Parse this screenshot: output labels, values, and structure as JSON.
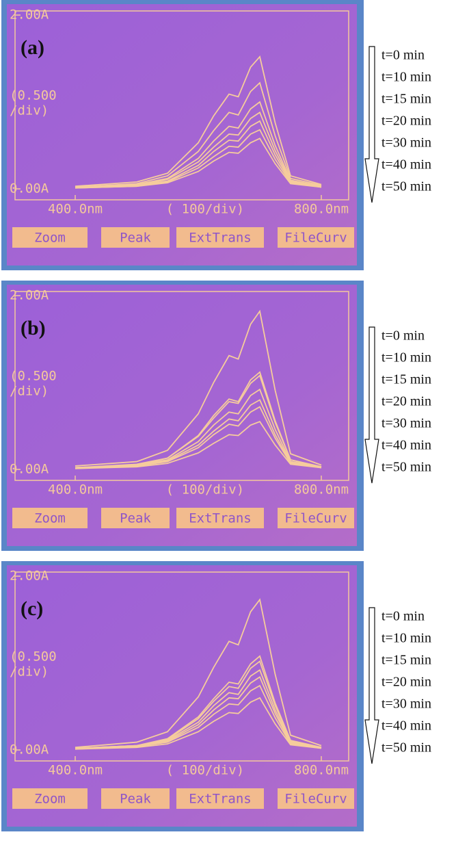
{
  "chart_data": [
    {
      "type": "line",
      "panel_label": "(a)",
      "x": [
        400,
        500,
        550,
        600,
        625,
        650,
        665,
        685,
        700,
        725,
        750,
        800
      ],
      "xlim": [
        400,
        800
      ],
      "ylim": [
        0,
        2
      ],
      "xticks": [
        {
          "value": 400,
          "label": "400.0nm"
        },
        {
          "value": 800,
          "label": "800.0nm"
        }
      ],
      "yticks": [
        {
          "value": 0,
          "label": "0.00A"
        },
        {
          "value": 2,
          "label": "2.00A"
        }
      ],
      "x_div_label": "( 100/div)",
      "y_div_label": [
        "(0.500",
        "/div)"
      ],
      "buttons": [
        "Zoom",
        "Peak",
        "ExtTrans",
        "FileCurv"
      ],
      "series": [
        {
          "name": "t=0 min",
          "color": "#f6cc9c",
          "values": [
            0.03,
            0.08,
            0.18,
            0.53,
            0.84,
            1.09,
            1.06,
            1.4,
            1.52,
            0.76,
            0.15,
            0.05
          ]
        },
        {
          "name": "t=10 min",
          "color": "#f6cc9c",
          "values": [
            0.02,
            0.06,
            0.15,
            0.43,
            0.67,
            0.88,
            0.85,
            1.12,
            1.22,
            0.61,
            0.12,
            0.04
          ]
        },
        {
          "name": "t=15 min",
          "color": "#f6cc9c",
          "values": [
            0.02,
            0.05,
            0.12,
            0.35,
            0.55,
            0.72,
            0.7,
            0.92,
            1.0,
            0.5,
            0.1,
            0.03
          ]
        },
        {
          "name": "t=20 min",
          "color": "#f6cc9c",
          "values": [
            0.02,
            0.04,
            0.11,
            0.31,
            0.48,
            0.63,
            0.62,
            0.81,
            0.88,
            0.44,
            0.09,
            0.03
          ]
        },
        {
          "name": "t=30 min",
          "color": "#f6cc9c",
          "values": [
            0.02,
            0.04,
            0.09,
            0.27,
            0.43,
            0.56,
            0.55,
            0.72,
            0.78,
            0.39,
            0.08,
            0.02
          ]
        },
        {
          "name": "t=40 min",
          "color": "#f6cc9c",
          "values": [
            0.01,
            0.03,
            0.08,
            0.24,
            0.37,
            0.49,
            0.48,
            0.63,
            0.68,
            0.34,
            0.07,
            0.02
          ]
        },
        {
          "name": "t=50 min",
          "color": "#f6cc9c",
          "values": [
            0.01,
            0.03,
            0.07,
            0.2,
            0.32,
            0.42,
            0.41,
            0.53,
            0.58,
            0.29,
            0.06,
            0.02
          ]
        }
      ]
    },
    {
      "type": "line",
      "panel_label": "(b)",
      "x": [
        400,
        500,
        550,
        600,
        625,
        650,
        665,
        685,
        700,
        725,
        750,
        800
      ],
      "xlim": [
        400,
        800
      ],
      "ylim": [
        0,
        2
      ],
      "xticks": [
        {
          "value": 400,
          "label": "400.0nm"
        },
        {
          "value": 800,
          "label": "800.0nm"
        }
      ],
      "yticks": [
        {
          "value": 0,
          "label": "0.00A"
        },
        {
          "value": 2,
          "label": "2.00A"
        }
      ],
      "x_div_label": "( 100/div)",
      "y_div_label": [
        "(0.500",
        "/div)"
      ],
      "buttons": [
        "Zoom",
        "Peak",
        "ExtTrans",
        "FileCurv"
      ],
      "series": [
        {
          "name": "t=0 min",
          "color": "#f6cc9c",
          "values": [
            0.04,
            0.09,
            0.22,
            0.64,
            1.0,
            1.31,
            1.27,
            1.67,
            1.82,
            0.91,
            0.18,
            0.05
          ]
        },
        {
          "name": "t=10 min",
          "color": "#f6cc9c",
          "values": [
            0.02,
            0.06,
            0.13,
            0.39,
            0.62,
            0.81,
            0.78,
            1.03,
            1.12,
            0.56,
            0.11,
            0.03
          ]
        },
        {
          "name": "t=15 min",
          "color": "#f6cc9c",
          "values": [
            0.02,
            0.05,
            0.13,
            0.38,
            0.59,
            0.78,
            0.76,
            0.99,
            1.08,
            0.54,
            0.11,
            0.03
          ]
        },
        {
          "name": "t=20 min",
          "color": "#f6cc9c",
          "values": [
            0.02,
            0.05,
            0.11,
            0.32,
            0.51,
            0.66,
            0.64,
            0.85,
            0.92,
            0.46,
            0.09,
            0.03
          ]
        },
        {
          "name": "t=30 min",
          "color": "#f6cc9c",
          "values": [
            0.02,
            0.04,
            0.1,
            0.28,
            0.44,
            0.58,
            0.56,
            0.74,
            0.8,
            0.4,
            0.08,
            0.02
          ]
        },
        {
          "name": "t=40 min",
          "color": "#f6cc9c",
          "values": [
            0.01,
            0.04,
            0.09,
            0.25,
            0.4,
            0.52,
            0.5,
            0.66,
            0.72,
            0.36,
            0.07,
            0.02
          ]
        },
        {
          "name": "t=50 min",
          "color": "#f6cc9c",
          "values": [
            0.01,
            0.03,
            0.07,
            0.19,
            0.3,
            0.4,
            0.39,
            0.51,
            0.55,
            0.28,
            0.06,
            0.02
          ]
        }
      ]
    },
    {
      "type": "line",
      "panel_label": "(c)",
      "x": [
        400,
        500,
        550,
        600,
        625,
        650,
        665,
        685,
        700,
        725,
        750,
        800
      ],
      "xlim": [
        400,
        800
      ],
      "ylim": [
        0,
        2
      ],
      "xticks": [
        {
          "value": 400,
          "label": "400.0nm"
        },
        {
          "value": 800,
          "label": "800.0nm"
        }
      ],
      "yticks": [
        {
          "value": 0,
          "label": "0.00A"
        },
        {
          "value": 2,
          "label": "2.00A"
        }
      ],
      "x_div_label": "( 100/div)",
      "y_div_label": [
        "(0.500",
        "/div)"
      ],
      "buttons": [
        "Zoom",
        "Peak",
        "ExtTrans",
        "FileCurv"
      ],
      "series": [
        {
          "name": "t=0 min",
          "color": "#f6cc9c",
          "values": [
            0.03,
            0.09,
            0.21,
            0.61,
            0.95,
            1.25,
            1.21,
            1.59,
            1.73,
            0.87,
            0.17,
            0.05
          ]
        },
        {
          "name": "t=10 min",
          "color": "#f6cc9c",
          "values": [
            0.02,
            0.05,
            0.13,
            0.38,
            0.59,
            0.78,
            0.76,
            0.99,
            1.08,
            0.54,
            0.11,
            0.03
          ]
        },
        {
          "name": "t=15 min",
          "color": "#f6cc9c",
          "values": [
            0.02,
            0.05,
            0.12,
            0.36,
            0.56,
            0.73,
            0.71,
            0.94,
            1.02,
            0.51,
            0.1,
            0.03
          ]
        },
        {
          "name": "t=20 min",
          "color": "#f6cc9c",
          "values": [
            0.02,
            0.05,
            0.11,
            0.32,
            0.51,
            0.66,
            0.64,
            0.85,
            0.92,
            0.46,
            0.09,
            0.03
          ]
        },
        {
          "name": "t=30 min",
          "color": "#f6cc9c",
          "values": [
            0.02,
            0.04,
            0.1,
            0.29,
            0.46,
            0.6,
            0.59,
            0.77,
            0.84,
            0.42,
            0.08,
            0.03
          ]
        },
        {
          "name": "t=40 min",
          "color": "#f6cc9c",
          "values": [
            0.01,
            0.04,
            0.09,
            0.26,
            0.41,
            0.53,
            0.52,
            0.68,
            0.74,
            0.37,
            0.07,
            0.02
          ]
        },
        {
          "name": "t=50 min",
          "color": "#f6cc9c",
          "values": [
            0.01,
            0.03,
            0.07,
            0.21,
            0.33,
            0.43,
            0.42,
            0.55,
            0.6,
            0.3,
            0.06,
            0.02
          ]
        }
      ]
    }
  ]
}
